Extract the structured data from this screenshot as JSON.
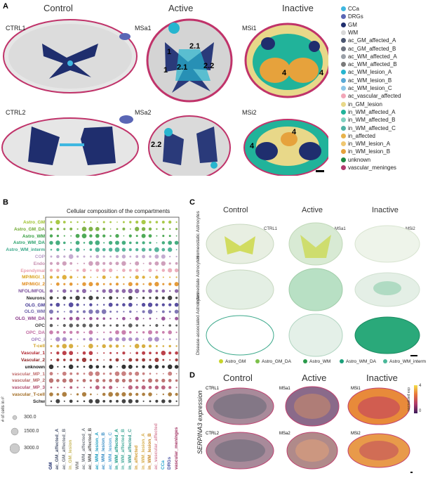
{
  "panel_a": {
    "letter": "A",
    "headers": [
      "Control",
      "Active",
      "Inactive"
    ],
    "samples": [
      "CTRL1",
      "MSa1",
      "MSi1",
      "CTRL2",
      "MSa2",
      "MSi2"
    ],
    "zone_labels_msa1": [
      "1",
      "1",
      "2.1",
      "2.1",
      "2.2"
    ],
    "zone_label_msa2": "2.2",
    "zone_labels_msi1": [
      "4",
      "4"
    ],
    "zone_labels_msi2": [
      "4",
      "4"
    ],
    "legend": [
      {
        "label": "CCa",
        "color": "#3fb7e0"
      },
      {
        "label": "DRGs",
        "color": "#5a66b5"
      },
      {
        "label": "GM",
        "color": "#1f2e6e"
      },
      {
        "label": "WM",
        "color": "#d8d8d8"
      },
      {
        "label": "ac_GM_affected_A",
        "color": "#4a5570"
      },
      {
        "label": "ac_GM_affected_B",
        "color": "#6e7480"
      },
      {
        "label": "ac_WM_affected_A",
        "color": "#9aa0a8"
      },
      {
        "label": "ac_WM_affected_B",
        "color": "#7a7a7a"
      },
      {
        "label": "ac_WM_lesion_A",
        "color": "#27b5cf"
      },
      {
        "label": "ac_WM_lesion_B",
        "color": "#5aa9d6"
      },
      {
        "label": "ac_WM_lesion_C",
        "color": "#8cc6e8"
      },
      {
        "label": "ac_vascular_affected",
        "color": "#f2a6b8"
      },
      {
        "label": "in_GM_lesion",
        "color": "#e8d889"
      },
      {
        "label": "in_WM_affected_A",
        "color": "#21b39a"
      },
      {
        "label": "in_WM_affected_B",
        "color": "#7fd0c0"
      },
      {
        "label": "in_WM_affected_C",
        "color": "#4fb1a3"
      },
      {
        "label": "in_affected",
        "color": "#e8b24a"
      },
      {
        "label": "in_WM_lesion_A",
        "color": "#f0c770"
      },
      {
        "label": "in_WM_lesion_B",
        "color": "#e6a23c"
      },
      {
        "label": "unknown",
        "color": "#1e8a44"
      },
      {
        "label": "vascular_meninges",
        "color": "#b03a6d"
      }
    ]
  },
  "panel_b": {
    "letter": "B",
    "title": "Cellular composition of the compartments",
    "cell_types": [
      {
        "label": "Astro_GM",
        "color": "#9abf27"
      },
      {
        "label": "Astro_GM_DA",
        "color": "#6aa62a"
      },
      {
        "label": "Astro_WM",
        "color": "#2f9b3a"
      },
      {
        "label": "Astro_WM_DA",
        "color": "#26a06a"
      },
      {
        "label": "Astro_WM_interm",
        "color": "#3aa88a"
      },
      {
        "label": "COP",
        "color": "#b99cc8"
      },
      {
        "label": "Endo",
        "color": "#c78fb0"
      },
      {
        "label": "Ependymal",
        "color": "#e9a0b0"
      },
      {
        "label": "MP/MiGl_1",
        "color": "#d9a21c"
      },
      {
        "label": "MP/MiGl_2",
        "color": "#e08a18"
      },
      {
        "label": "NFOL/MFOL",
        "color": "#7a4f9a"
      },
      {
        "label": "Neurons",
        "color": "#222222"
      },
      {
        "label": "OLG_GM",
        "color": "#3b2f8f"
      },
      {
        "label": "OLG_WM",
        "color": "#6a5fa8"
      },
      {
        "label": "OLG_WM_DA",
        "color": "#8a3a8a"
      },
      {
        "label": "OPC",
        "color": "#444444"
      },
      {
        "label": "OPC_DA",
        "color": "#c06aa0"
      },
      {
        "label": "OPC_i",
        "color": "#a07cc0"
      },
      {
        "label": "T-cell",
        "color": "#d0a020"
      },
      {
        "label": "Vascular_1",
        "color": "#b0202a"
      },
      {
        "label": "Vascular_2",
        "color": "#8a1a1a"
      },
      {
        "label": "unknown",
        "color": "#111111"
      },
      {
        "label": "vascular_MP_1",
        "color": "#c06a6a"
      },
      {
        "label": "vascular_MP_2",
        "color": "#b05a5a"
      },
      {
        "label": "vascular_MP_3",
        "color": "#b04a6a"
      },
      {
        "label": "vascular_T-cell",
        "color": "#a06a20"
      },
      {
        "label": "Schw",
        "color": "#222222"
      }
    ],
    "compartments": [
      {
        "label": "GM",
        "color": "#1f2e6e"
      },
      {
        "label": "ac_GM_affected_A",
        "color": "#4a5570"
      },
      {
        "label": "ac_GM_affected_B",
        "color": "#6e7480"
      },
      {
        "label": "in_GM_lesion",
        "color": "#c8b860"
      },
      {
        "label": "WM",
        "color": "#888888"
      },
      {
        "label": "ac_WM_affected_A",
        "color": "#7a8088"
      },
      {
        "label": "ac_WM_affected_B",
        "color": "#5a5a5a"
      },
      {
        "label": "ac_WM_lesion_A",
        "color": "#1f9fc0"
      },
      {
        "label": "ac_WM_lesion_B",
        "color": "#3c8fc6"
      },
      {
        "label": "ac_WM_lesion_C",
        "color": "#5aa6d8"
      },
      {
        "label": "in_WM_affected_A",
        "color": "#1a9a86"
      },
      {
        "label": "in_WM_affected_B",
        "color": "#4fb0a0"
      },
      {
        "label": "in_WM_affected_C",
        "color": "#3a9c90"
      },
      {
        "label": "in_affected",
        "color": "#d09a30"
      },
      {
        "label": "in_WM_lesion_A",
        "color": "#d8b050"
      },
      {
        "label": "in_WM_lesion_B",
        "color": "#c88a28"
      },
      {
        "label": "ac_vascular_affected",
        "color": "#d88aa0"
      },
      {
        "label": "CCa",
        "color": "#2aa6d0"
      },
      {
        "label": "DRGs",
        "color": "#4a56a5"
      },
      {
        "label": "vascular_meninges",
        "color": "#a03060"
      }
    ],
    "size_legend_title": "# of cells in r²",
    "size_legend": [
      "300.0",
      "1500.0",
      "3000.0"
    ]
  },
  "panel_c": {
    "letter": "C",
    "headers": [
      "Control",
      "Active",
      "Inactive"
    ],
    "samples": [
      "CTRL1",
      "MSa1",
      "MSi2"
    ],
    "row_labels": [
      "Homeostatic Astrocytes",
      "Intermediate Astrocytes",
      "Disease-associated Astrocytes"
    ],
    "legend": [
      {
        "label": "Astro_GM",
        "color": "#c8d42a"
      },
      {
        "label": "Astro_GM_DA",
        "color": "#7cc04a"
      },
      {
        "label": "Astro_WM",
        "color": "#2a9a4a"
      },
      {
        "label": "Astro_WM_DA",
        "color": "#1aa07a"
      },
      {
        "label": "Astro_WM_interm",
        "color": "#4ab89a"
      }
    ]
  },
  "panel_d": {
    "letter": "D",
    "headers": [
      "Control",
      "Active",
      "Inactive"
    ],
    "side_label": "SERPINA3 expression",
    "samples": [
      "CTRL1",
      "MSa1",
      "MSi1",
      "CTRL2",
      "MSa2",
      "MSi2"
    ],
    "colorbar_label": "normalized exp",
    "colorbar_ticks": [
      "4",
      "0"
    ]
  }
}
